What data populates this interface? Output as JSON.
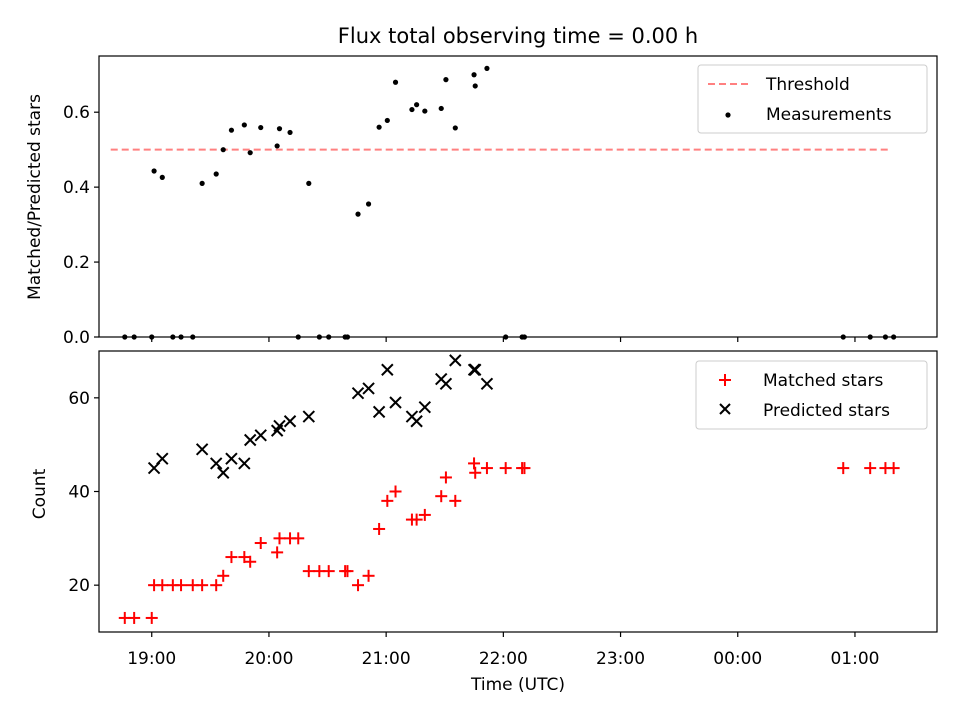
{
  "chart_data": [
    {
      "type": "scatter",
      "title": "Flux total observing time = 0.00 h",
      "xlabel": "",
      "ylabel": "Matched/Predicted stars",
      "xlim": [
        18.55,
        25.7
      ],
      "ylim": [
        0,
        0.75
      ],
      "yticks": [
        0.0,
        0.2,
        0.4,
        0.6
      ],
      "ytick_labels": [
        "0.0",
        "0.2",
        "0.4",
        "0.6"
      ],
      "legend": {
        "placement": "top-right",
        "entries": [
          {
            "label": "Threshold",
            "marker": "dashed-line",
            "color": "#ff8080"
          },
          {
            "label": "Measurements",
            "marker": "dot",
            "color": "#000000"
          }
        ]
      },
      "threshold": {
        "name": "Threshold",
        "y": 0.5,
        "x": [
          18.65,
          25.3
        ],
        "color": "#ff8080"
      },
      "series": [
        {
          "name": "Measurements",
          "color": "#000000",
          "x": [
            18.77,
            18.85,
            19.0,
            19.02,
            19.09,
            19.18,
            19.25,
            19.35,
            19.43,
            19.55,
            19.61,
            19.68,
            19.79,
            19.84,
            19.93,
            20.07,
            20.09,
            20.18,
            20.25,
            20.34,
            20.43,
            20.51,
            20.65,
            20.67,
            20.76,
            20.85,
            20.94,
            21.01,
            21.08,
            21.22,
            21.26,
            21.33,
            21.47,
            21.51,
            21.59,
            21.75,
            21.76,
            21.86,
            22.02,
            22.16,
            22.18,
            24.9,
            25.13,
            25.26,
            25.33
          ],
          "y": [
            0.0,
            0.0,
            0.0,
            0.443,
            0.426,
            0.0,
            0.0,
            0.0,
            0.41,
            0.435,
            0.5,
            0.552,
            0.566,
            0.492,
            0.559,
            0.51,
            0.556,
            0.546,
            0.0,
            0.41,
            0.0,
            0.0,
            0.0,
            0.0,
            0.328,
            0.355,
            0.56,
            0.578,
            0.68,
            0.607,
            0.62,
            0.603,
            0.61,
            0.687,
            0.558,
            0.7,
            0.67,
            0.717,
            0.0,
            0.0,
            0.0,
            0.0,
            0.0,
            0.0,
            0.0
          ]
        }
      ]
    },
    {
      "type": "scatter",
      "title": "",
      "xlabel": "Time (UTC)",
      "ylabel": "Count",
      "xlim": [
        18.55,
        25.7
      ],
      "ylim": [
        10,
        70
      ],
      "yticks": [
        20,
        40,
        60
      ],
      "ytick_labels": [
        "20",
        "40",
        "60"
      ],
      "xticks": [
        19,
        20,
        21,
        22,
        23,
        24,
        25
      ],
      "xtick_labels": [
        "19:00",
        "20:00",
        "21:00",
        "22:00",
        "23:00",
        "00:00",
        "01:00"
      ],
      "legend": {
        "placement": "top-right",
        "entries": [
          {
            "label": "Matched stars",
            "marker": "plus",
            "color": "#ff0000"
          },
          {
            "label": "Predicted stars",
            "marker": "x",
            "color": "#000000"
          }
        ]
      },
      "series": [
        {
          "name": "Matched stars",
          "marker": "plus",
          "color": "#ff0000",
          "x": [
            18.77,
            18.85,
            19.0,
            19.02,
            19.09,
            19.18,
            19.25,
            19.35,
            19.43,
            19.55,
            19.61,
            19.68,
            19.79,
            19.84,
            19.93,
            20.07,
            20.09,
            20.18,
            20.25,
            20.34,
            20.43,
            20.51,
            20.65,
            20.67,
            20.76,
            20.85,
            20.94,
            21.01,
            21.08,
            21.22,
            21.26,
            21.33,
            21.47,
            21.51,
            21.59,
            21.75,
            21.76,
            21.86,
            22.02,
            22.16,
            22.18,
            24.9,
            25.13,
            25.26,
            25.33
          ],
          "y": [
            13,
            13,
            13,
            20,
            20,
            20,
            20,
            20,
            20,
            20,
            22,
            26,
            26,
            25,
            29,
            27,
            30,
            30,
            30,
            23,
            23,
            23,
            23,
            23,
            20,
            22,
            32,
            38,
            40,
            34,
            34,
            35,
            39,
            43,
            38,
            46,
            44,
            45,
            45,
            45,
            45,
            45,
            45,
            45,
            45
          ]
        },
        {
          "name": "Predicted stars",
          "marker": "x",
          "color": "#000000",
          "x": [
            19.02,
            19.09,
            19.43,
            19.55,
            19.61,
            19.68,
            19.79,
            19.84,
            19.93,
            20.07,
            20.09,
            20.18,
            20.34,
            20.76,
            20.85,
            20.94,
            21.01,
            21.08,
            21.22,
            21.26,
            21.33,
            21.47,
            21.51,
            21.59,
            21.75,
            21.76,
            21.86
          ],
          "y": [
            45,
            47,
            49,
            46,
            44,
            47,
            46,
            51,
            52,
            53,
            54,
            55,
            56,
            61,
            62,
            57,
            66,
            59,
            56,
            55,
            58,
            64,
            63,
            68,
            66,
            66,
            63
          ]
        }
      ]
    }
  ]
}
